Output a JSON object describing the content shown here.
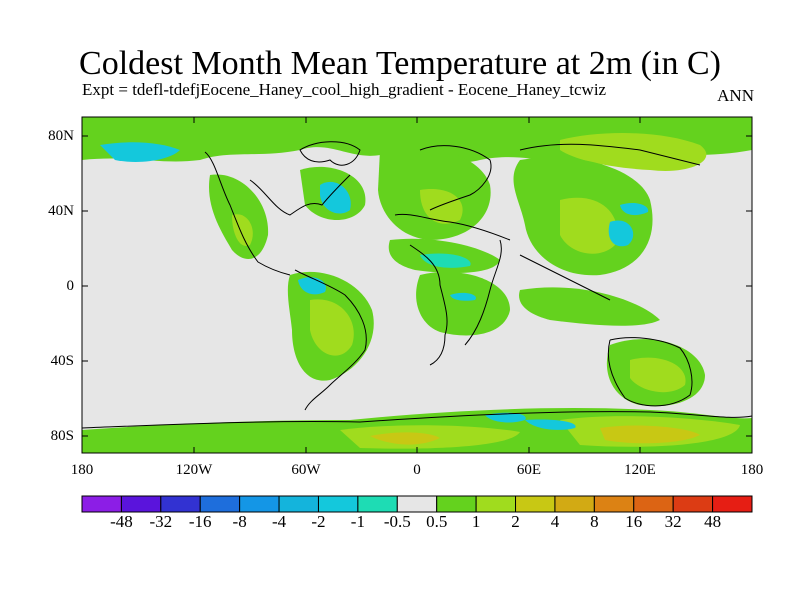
{
  "title": "Coldest Month Mean Temperature at 2m (in C)",
  "subtitle": "Expt = tdefl-tdefjEocene_Haney_cool_high_gradient - Eocene_Haney_tcwiz",
  "season": "ANN",
  "axes": {
    "lat_labels": [
      "80N",
      "40N",
      "0",
      "40S",
      "80S"
    ],
    "lon_labels": [
      "180",
      "120W",
      "60W",
      "0",
      "60E",
      "120E",
      "180"
    ]
  },
  "colorbar": {
    "labels": [
      "-48",
      "-32",
      "-16",
      "-8",
      "-4",
      "-2",
      "-1",
      "-0.5",
      "0.5",
      "1",
      "2",
      "4",
      "8",
      "16",
      "32",
      "48"
    ],
    "colors": [
      "#8c1ee6",
      "#5a14dc",
      "#3232d2",
      "#1e6edc",
      "#1496e6",
      "#14b4dc",
      "#14c8dc",
      "#1edcb4",
      "#e6e6e6",
      "#64d21e",
      "#a0dc1e",
      "#c8c814",
      "#d2aa14",
      "#dc8214",
      "#dc6414",
      "#dc3c14",
      "#e61e14"
    ]
  },
  "colors": {
    "background_field": "#e6e6e6",
    "positive_small": "#64d21e",
    "positive_mid": "#a0dc1e",
    "positive_high": "#c8c814",
    "negative_small": "#1edcb4",
    "negative_mid": "#14c8dc",
    "coastline": "#000000"
  }
}
